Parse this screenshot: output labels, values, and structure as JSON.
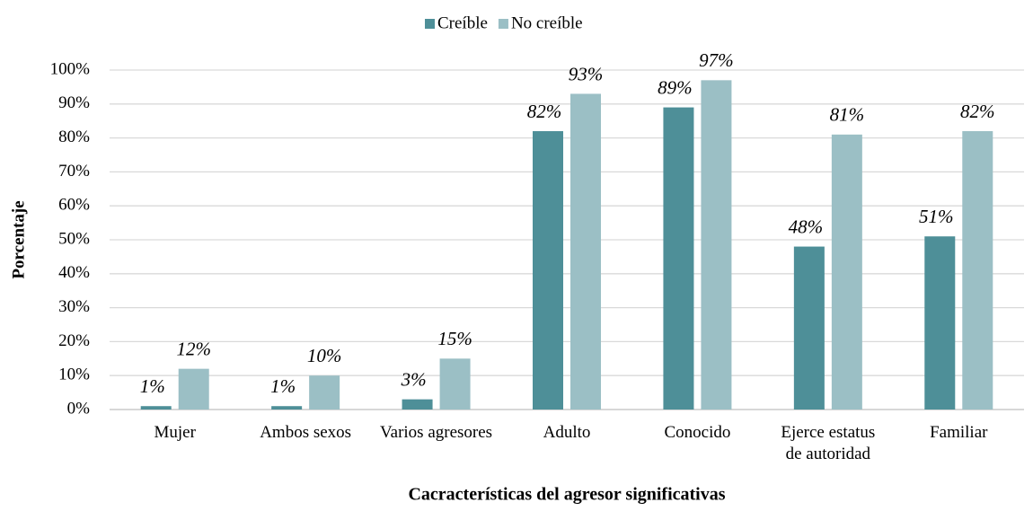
{
  "chart_data": {
    "type": "bar",
    "xlabel": "Cacracterísticas del agresor significativas",
    "ylabel": "Porcentaje",
    "categories": [
      "Mujer",
      "Ambos sexos",
      "Varios agresores",
      "Adulto",
      "Conocido",
      "Ejerce estatus de autoridad",
      "Familiar"
    ],
    "series": [
      {
        "name": "Creíble",
        "color": "#4e8f98",
        "values": [
          1,
          1,
          3,
          82,
          89,
          48,
          51
        ],
        "value_labels": [
          "1%",
          "1%",
          "3%",
          "82%",
          "89%",
          "48%",
          "51%"
        ]
      },
      {
        "name": "No creíble",
        "color": "#9bbfc5",
        "values": [
          12,
          10,
          15,
          93,
          97,
          81,
          82
        ],
        "value_labels": [
          "12%",
          "10%",
          "15%",
          "93%",
          "97%",
          "81%",
          "82%"
        ]
      }
    ],
    "ylim": [
      0,
      100
    ],
    "yticks": [
      {
        "value": 0,
        "label": "0%"
      },
      {
        "value": 10,
        "label": "10%"
      },
      {
        "value": 20,
        "label": "20%"
      },
      {
        "value": 30,
        "label": "30%"
      },
      {
        "value": 40,
        "label": "40%"
      },
      {
        "value": 50,
        "label": "50%"
      },
      {
        "value": 60,
        "label": "60%"
      },
      {
        "value": 70,
        "label": "70%"
      },
      {
        "value": 80,
        "label": "80%"
      },
      {
        "value": 90,
        "label": "90%"
      },
      {
        "value": 100,
        "label": "100%"
      }
    ],
    "grid": true,
    "legend": "top"
  }
}
